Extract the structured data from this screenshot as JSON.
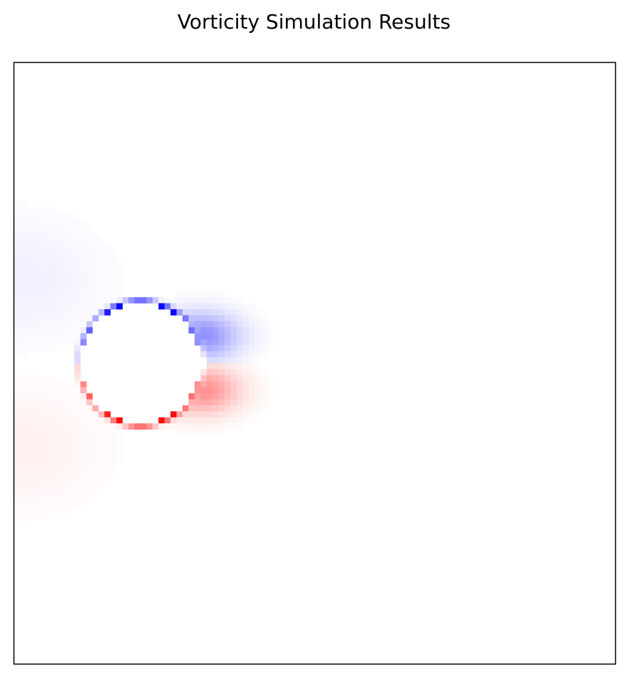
{
  "chart_data": {
    "type": "heatmap",
    "title": "Vorticity Simulation Results",
    "xlabel": "",
    "ylabel": "",
    "axes_ticks": "none",
    "grid": false,
    "legend": "none",
    "colormap": "bwr",
    "value_range": [
      -1,
      1
    ],
    "grid_size": [
      100,
      100
    ],
    "obstacle": {
      "shape": "circle",
      "center": [
        21,
        50
      ],
      "radius": 10
    },
    "features": [
      {
        "name": "upper boundary layer",
        "sign": "negative",
        "color": "#0000ff",
        "peak_value": -1.0
      },
      {
        "name": "lower boundary layer",
        "sign": "positive",
        "color": "#ff0000",
        "peak_value": 1.0
      },
      {
        "name": "upper downstream wake",
        "sign": "negative",
        "peak_value": -0.35
      },
      {
        "name": "lower downstream wake",
        "sign": "positive",
        "peak_value": 0.35
      },
      {
        "name": "upstream inflow band (upper)",
        "sign": "negative",
        "peak_value": -0.06
      },
      {
        "name": "upstream inflow band (lower)",
        "sign": "positive",
        "peak_value": 0.06
      }
    ],
    "colors": {
      "negative": "#0000ff",
      "positive": "#ff0000",
      "zero": "#ffffff"
    }
  }
}
